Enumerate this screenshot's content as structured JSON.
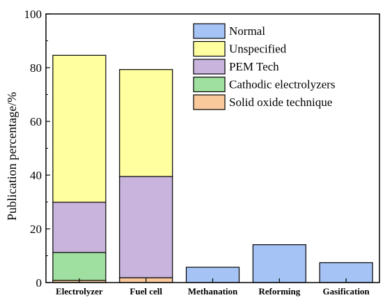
{
  "chart_data": {
    "type": "bar",
    "stacked": true,
    "categories": [
      "Electrolyzer",
      "Fuel cell",
      "Methanation",
      "Reforming",
      "Gasification"
    ],
    "series": [
      {
        "name": "Solid oxide technique",
        "color": "#f9c89b",
        "values": [
          0.8,
          1.8,
          0,
          0,
          0
        ]
      },
      {
        "name": "Cathodic electrolyzers",
        "color": "#9fdf9f",
        "values": [
          10.4,
          0,
          0,
          0,
          0
        ]
      },
      {
        "name": "PEM Tech",
        "color": "#c8b4dc",
        "values": [
          18.7,
          37.7,
          0,
          0,
          0
        ]
      },
      {
        "name": "Unspecified",
        "color": "#ffff9f",
        "values": [
          54.7,
          39.8,
          0,
          0,
          0
        ]
      },
      {
        "name": "Normal",
        "color": "#a5c3f5",
        "values": [
          0,
          0,
          5.7,
          14.1,
          7.4
        ]
      }
    ],
    "legend_order": [
      "Normal",
      "Unspecified",
      "PEM Tech",
      "Cathodic electrolyzers",
      "Solid oxide technique"
    ],
    "legend_position": "top-right",
    "ylabel": "Publication percentage/%",
    "xlabel": "",
    "ylim": [
      0,
      100
    ],
    "yticks": [
      "0",
      "20",
      "40",
      "60",
      "80",
      "100"
    ],
    "grid": false
  }
}
